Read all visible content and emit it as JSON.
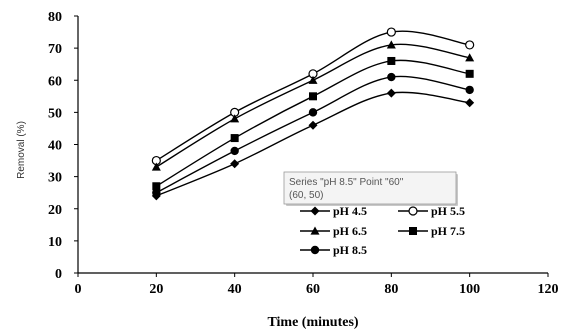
{
  "chart_data": {
    "type": "line",
    "title": "",
    "xlabel": "Time (minutes)",
    "ylabel": "Removal (%)",
    "xlim": [
      0,
      120
    ],
    "ylim": [
      0,
      80
    ],
    "xticks": [
      0,
      20,
      40,
      60,
      80,
      100,
      120
    ],
    "yticks": [
      0,
      10,
      20,
      30,
      40,
      50,
      60,
      70,
      80
    ],
    "grid": false,
    "legend_position": "bottom-right",
    "x": [
      20,
      40,
      60,
      80,
      100
    ],
    "series": [
      {
        "name": "pH 4.5",
        "marker": "diamond",
        "values": [
          24,
          34,
          46,
          56,
          53
        ]
      },
      {
        "name": "pH 5.5",
        "marker": "circle-open",
        "values": [
          35,
          50,
          62,
          75,
          71
        ]
      },
      {
        "name": "pH 6.5",
        "marker": "triangle",
        "values": [
          33,
          48,
          60,
          71,
          67
        ]
      },
      {
        "name": "pH 7.5",
        "marker": "square",
        "values": [
          27,
          42,
          55,
          66,
          62
        ]
      },
      {
        "name": "pH 8.5",
        "marker": "circle",
        "values": [
          25,
          38,
          50,
          61,
          57
        ]
      }
    ],
    "tooltip": {
      "line1": "Series \"pH 8.5\" Point \"60\"",
      "line2": "(60, 50)"
    }
  }
}
